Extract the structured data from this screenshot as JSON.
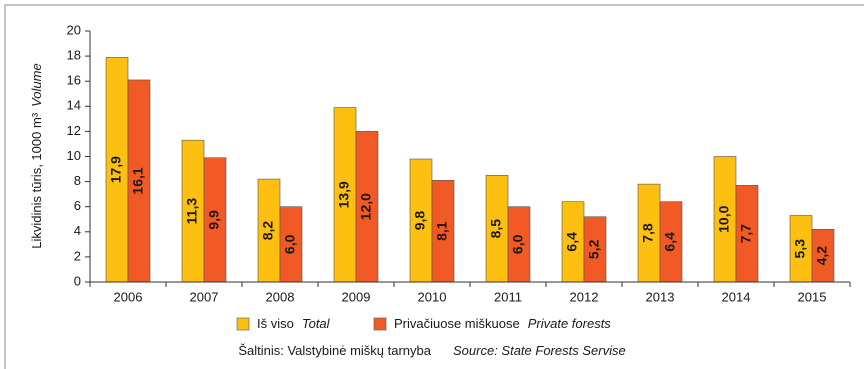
{
  "chart_data": {
    "type": "bar",
    "y_label": "Likvidinis tūris, 1000 m³",
    "y_label_en": "Volume",
    "categories": [
      "2006",
      "2007",
      "2008",
      "2009",
      "2010",
      "2011",
      "2012",
      "2013",
      "2014",
      "2015"
    ],
    "series": [
      {
        "name": "Iš viso",
        "name_en": "Total",
        "color": "#fdc010",
        "values": [
          17.9,
          11.3,
          8.2,
          13.9,
          9.8,
          8.5,
          6.4,
          7.8,
          10.0,
          5.3
        ],
        "value_labels": [
          "17,9",
          "11,3",
          "8,2",
          "13,9",
          "9,8",
          "8,5",
          "6,4",
          "7,8",
          "10,0",
          "5,3"
        ]
      },
      {
        "name": "Privačiuose miškuose",
        "name_en": "Private forests",
        "color": "#f15a24",
        "values": [
          16.1,
          9.9,
          6.0,
          12.0,
          8.1,
          6.0,
          5.2,
          6.4,
          7.7,
          4.2
        ],
        "value_labels": [
          "16,1",
          "9,9",
          "6,0",
          "12,0",
          "8,1",
          "6,0",
          "5,2",
          "6,4",
          "7,7",
          "4,2"
        ]
      }
    ],
    "ylim": [
      0,
      20
    ],
    "yticks": [
      0,
      2,
      4,
      6,
      8,
      10,
      12,
      14,
      16,
      18,
      20
    ],
    "source": "Šaltinis: Valstybinė miškų tarnyba",
    "source_en": "Source: State Forests Servise"
  }
}
